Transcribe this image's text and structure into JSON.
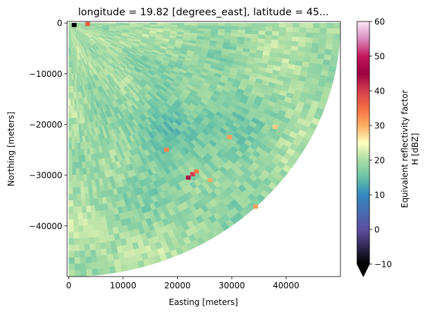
{
  "chart_data": {
    "type": "heatmap",
    "subtype": "radar-ppi-quarter-sector",
    "title": "longitude = 19.82 [degrees_east], latitude = 45...",
    "xlabel": "Easting [meters]",
    "ylabel": "Northing [meters]",
    "xlim": [
      -300,
      50000
    ],
    "ylim": [
      -50000,
      300
    ],
    "x_ticks": [
      0,
      10000,
      20000,
      30000,
      40000
    ],
    "x_tick_labels": [
      "0",
      "10000",
      "20000",
      "30000",
      "40000"
    ],
    "y_ticks": [
      0,
      -10000,
      -20000,
      -30000,
      -40000
    ],
    "y_tick_labels": [
      "0",
      "−10000",
      "−20000",
      "−30000",
      "−40000"
    ],
    "grid": false,
    "sector": {
      "max_range": 50000,
      "azimuth_start_deg": 90,
      "azimuth_end_deg": 180,
      "background_range_dBZ": [
        16,
        24
      ]
    },
    "notable_cells": [
      {
        "x": 22000,
        "y": -30500,
        "value": 44
      },
      {
        "x": 22800,
        "y": -29800,
        "value": 40
      },
      {
        "x": 23500,
        "y": -29300,
        "value": 34
      },
      {
        "x": 29600,
        "y": -22500,
        "value": 31
      },
      {
        "x": 34400,
        "y": -36200,
        "value": 31
      },
      {
        "x": 18000,
        "y": -25000,
        "value": 33
      },
      {
        "x": 26000,
        "y": -31000,
        "value": 30
      },
      {
        "x": 38000,
        "y": -20500,
        "value": 28
      },
      {
        "x": 3500,
        "y": -200,
        "value": 36
      },
      {
        "x": 1000,
        "y": -400,
        "value": -10
      }
    ],
    "colorbar": {
      "label_line1": "Equivalent reflectivity factor",
      "label_line2": "H [dBZ]",
      "range": [
        -10,
        60
      ],
      "ticks": [
        60,
        50,
        40,
        30,
        20,
        10,
        0,
        -10
      ],
      "tick_labels": [
        "60",
        "50",
        "40",
        "30",
        "20",
        "10",
        "0",
        "−10"
      ],
      "extend": "min",
      "colormap": "Spectral_r-like",
      "stops": [
        {
          "v": -10,
          "color": "#000000"
        },
        {
          "v": 0,
          "color": "#5e4fa2"
        },
        {
          "v": 10,
          "color": "#3288bd"
        },
        {
          "v": 15,
          "color": "#66c2a5"
        },
        {
          "v": 20,
          "color": "#abdda4"
        },
        {
          "v": 25,
          "color": "#ffffbf"
        },
        {
          "v": 30,
          "color": "#fdae61"
        },
        {
          "v": 35,
          "color": "#f46d43"
        },
        {
          "v": 40,
          "color": "#d53e4f"
        },
        {
          "v": 45,
          "color": "#9e0142"
        },
        {
          "v": 50,
          "color": "#c2185b"
        },
        {
          "v": 55,
          "color": "#d98cc0"
        },
        {
          "v": 60,
          "color": "#fbe8f6"
        }
      ]
    }
  }
}
